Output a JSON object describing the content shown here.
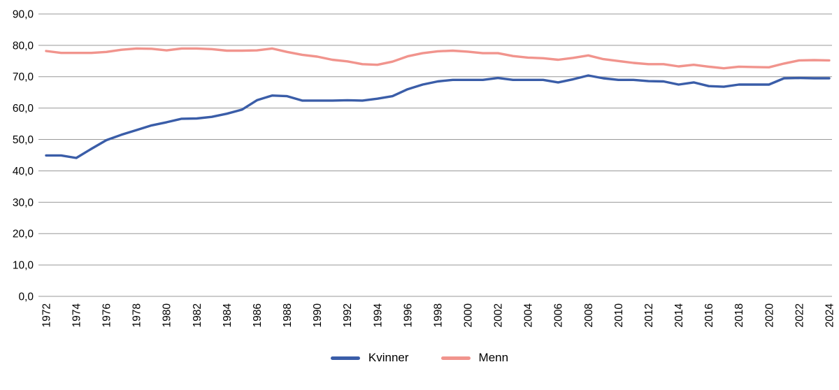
{
  "chart_data": {
    "type": "line",
    "title": "",
    "xlabel": "",
    "ylabel": "",
    "ylim": [
      0,
      90
    ],
    "y_tick_step": 10,
    "y_tick_labels": [
      "0,0",
      "10,0",
      "20,0",
      "30,0",
      "40,0",
      "50,0",
      "60,0",
      "70,0",
      "80,0",
      "90,0"
    ],
    "x": [
      1972,
      1973,
      1974,
      1975,
      1976,
      1977,
      1978,
      1979,
      1980,
      1981,
      1982,
      1983,
      1984,
      1985,
      1986,
      1987,
      1988,
      1989,
      1990,
      1991,
      1992,
      1993,
      1994,
      1995,
      1996,
      1997,
      1998,
      1999,
      2000,
      2001,
      2002,
      2003,
      2004,
      2005,
      2006,
      2007,
      2008,
      2009,
      2010,
      2011,
      2012,
      2013,
      2014,
      2015,
      2016,
      2017,
      2018,
      2019,
      2020,
      2021,
      2022,
      2023,
      2024
    ],
    "x_tick_labels": [
      "1972",
      "1974",
      "1976",
      "1978",
      "1980",
      "1982",
      "1984",
      "1986",
      "1988",
      "1990",
      "1992",
      "1994",
      "1996",
      "1998",
      "2000",
      "2002",
      "2004",
      "2006",
      "2008",
      "2010",
      "2012",
      "2014",
      "2016",
      "2018",
      "2020",
      "2022",
      "2024"
    ],
    "grid": true,
    "grid_color": "#999999",
    "text_color": "#000000",
    "legend_position": "bottom",
    "series": [
      {
        "name": "Kvinner",
        "color": "#3A5DA8",
        "values": [
          44.9,
          44.9,
          44.1,
          47.0,
          49.8,
          51.5,
          53.0,
          54.5,
          55.5,
          56.6,
          56.7,
          57.2,
          58.2,
          59.5,
          62.5,
          64.0,
          63.8,
          62.4,
          62.4,
          62.4,
          62.5,
          62.4,
          63.0,
          63.8,
          66.0,
          67.5,
          68.5,
          69.0,
          69.0,
          69.0,
          69.6,
          69.0,
          69.0,
          69.0,
          68.2,
          69.2,
          70.4,
          69.5,
          69.0,
          69.0,
          68.6,
          68.5,
          67.5,
          68.2,
          67.0,
          66.8,
          67.5,
          67.5,
          67.5,
          69.5,
          69.6,
          69.5,
          69.5
        ]
      },
      {
        "name": "Menn",
        "color": "#F1948D",
        "values": [
          78.2,
          77.6,
          77.6,
          77.6,
          77.9,
          78.6,
          79.0,
          78.9,
          78.4,
          79.0,
          79.0,
          78.8,
          78.3,
          78.3,
          78.4,
          79.0,
          77.9,
          77.0,
          76.4,
          75.4,
          74.9,
          74.0,
          73.8,
          74.8,
          76.5,
          77.5,
          78.1,
          78.3,
          78.0,
          77.5,
          77.5,
          76.6,
          76.1,
          75.9,
          75.4,
          76.0,
          76.8,
          75.6,
          75.0,
          74.4,
          74.0,
          74.0,
          73.3,
          73.8,
          73.2,
          72.7,
          73.2,
          73.1,
          73.0,
          74.2,
          75.2,
          75.3,
          75.2
        ]
      }
    ]
  }
}
